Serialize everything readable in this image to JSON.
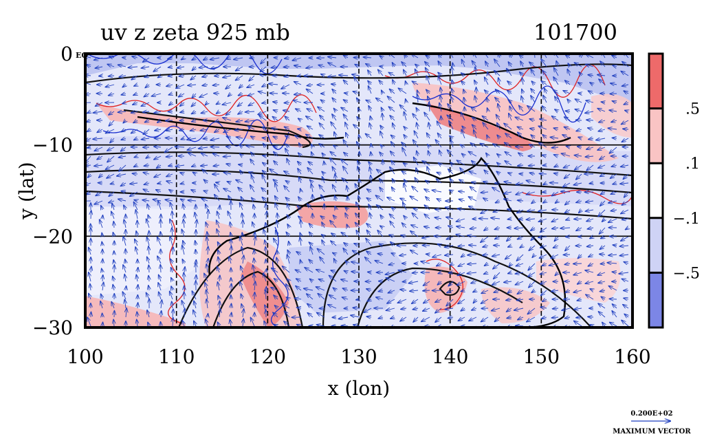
{
  "title": {
    "left": "uv z zeta 925 mb",
    "right": "101700"
  },
  "chart_data": {
    "type": "contour-vector-map",
    "variables": [
      "uv",
      "z",
      "zeta"
    ],
    "level": "925 mb",
    "timestamp": "101700",
    "xlabel": "x (lon)",
    "ylabel": "y (lat)",
    "xlim": [
      100,
      160
    ],
    "ylim": [
      -30,
      0
    ],
    "x_ticks": [
      100,
      110,
      120,
      130,
      140,
      150,
      160
    ],
    "y_ticks": [
      {
        "value": 0,
        "label": "0"
      },
      {
        "value": -10,
        "label": "−10"
      },
      {
        "value": -20,
        "label": "−20"
      },
      {
        "value": -30,
        "label": "−30"
      }
    ],
    "corner_label": "EQ",
    "gridlines": {
      "x": [
        110,
        120,
        130,
        140,
        150
      ],
      "y": [
        -10,
        -20
      ]
    },
    "colorbar": {
      "bins": [
        {
          "color": "#ee6a6a"
        },
        {
          "color": "#f9c4c4"
        },
        {
          "color": "#ffffff"
        },
        {
          "color": "#cfd3f5"
        },
        {
          "color": "#7c86e6"
        }
      ],
      "boundary_labels": [
        ".5",
        ".1",
        "−.1",
        "−.5"
      ]
    },
    "vector_key": {
      "value_label": "0.200E+02",
      "caption": "MAXIMUM VECTOR"
    }
  }
}
